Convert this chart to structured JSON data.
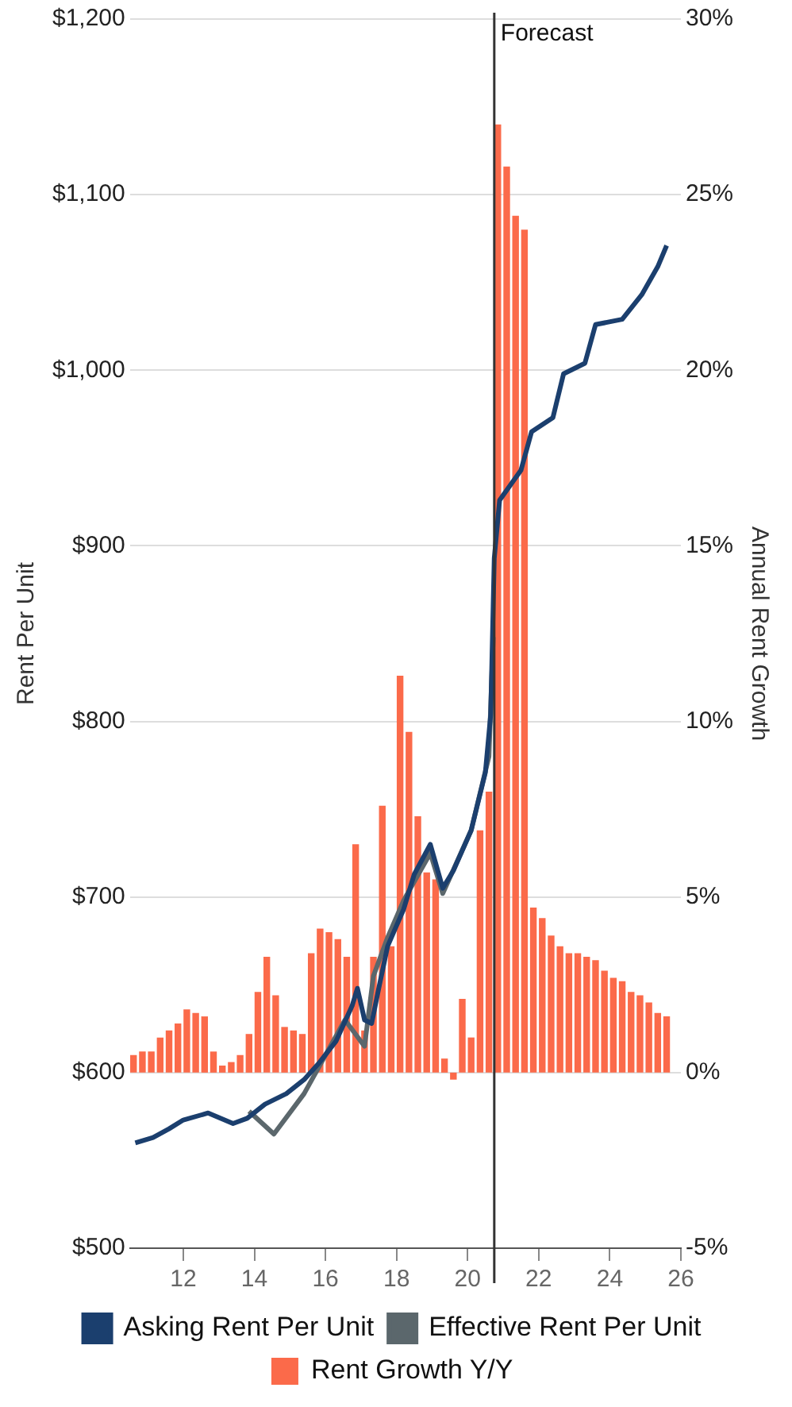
{
  "chart_data": {
    "type": "bar",
    "xlabel": null,
    "ylabel": "Rent Per Unit",
    "y2label": "Annual Rent Growth",
    "xlim": [
      10.5,
      26
    ],
    "xticks": [
      12,
      14,
      16,
      18,
      20,
      22,
      24,
      26
    ],
    "ylim": [
      500,
      1200
    ],
    "yticks": [
      {
        "value": 500,
        "label": "$500"
      },
      {
        "value": 600,
        "label": "$600"
      },
      {
        "value": 700,
        "label": "$700"
      },
      {
        "value": 800,
        "label": "$800"
      },
      {
        "value": 900,
        "label": "$900"
      },
      {
        "value": 1000,
        "label": "$1,000"
      },
      {
        "value": 1100,
        "label": "$1,100"
      },
      {
        "value": 1200,
        "label": "$1,200"
      }
    ],
    "y2lim": [
      -5,
      30
    ],
    "y2ticks": [
      {
        "value": -5,
        "label": "-5%"
      },
      {
        "value": 0,
        "label": "0%"
      },
      {
        "value": 5,
        "label": "5%"
      },
      {
        "value": 10,
        "label": "10%"
      },
      {
        "value": 15,
        "label": "15%"
      },
      {
        "value": 20,
        "label": "20%"
      },
      {
        "value": 25,
        "label": "25%"
      },
      {
        "value": 30,
        "label": "30%"
      }
    ],
    "grid": "y",
    "legend": "bottom",
    "ref_lines": [
      {
        "axis": "x",
        "value": 20.75,
        "label": "Forecast",
        "color": "#333333"
      }
    ],
    "series": [
      {
        "name": "Rent Growth Y/Y",
        "axis": "y2",
        "color": "#fb6a4a",
        "x": [
          10.6,
          10.85,
          11.1,
          11.35,
          11.6,
          11.85,
          12.1,
          12.35,
          12.6,
          12.85,
          13.1,
          13.35,
          13.6,
          13.85,
          14.1,
          14.35,
          14.6,
          14.85,
          15.1,
          15.35,
          15.6,
          15.85,
          16.1,
          16.35,
          16.6,
          16.85,
          17.1,
          17.35,
          17.6,
          17.85,
          18.1,
          18.35,
          18.6,
          18.85,
          19.1,
          19.35,
          19.6,
          19.85,
          20.1,
          20.35,
          20.6,
          20.85,
          21.1,
          21.35,
          21.6,
          21.85,
          22.1,
          22.35,
          22.6,
          22.85,
          23.1,
          23.35,
          23.6,
          23.85,
          24.1,
          24.35,
          24.6,
          24.85,
          25.1,
          25.35,
          25.6
        ],
        "values": [
          0.5,
          0.6,
          0.6,
          1.0,
          1.2,
          1.4,
          1.8,
          1.7,
          1.6,
          0.6,
          0.2,
          0.3,
          0.5,
          1.1,
          2.3,
          3.3,
          2.2,
          1.3,
          1.2,
          1.1,
          3.4,
          4.1,
          4.0,
          3.8,
          3.3,
          6.5,
          1.2,
          3.3,
          7.6,
          3.6,
          11.3,
          9.7,
          7.3,
          5.7,
          5.5,
          0.4,
          -0.2,
          2.1,
          1.0,
          6.9,
          8.0,
          27.0,
          25.8,
          24.4,
          24.0,
          4.7,
          4.4,
          3.9,
          3.6,
          3.4,
          3.4,
          3.3,
          3.2,
          2.9,
          2.7,
          2.6,
          2.3,
          2.2,
          2.0,
          1.7,
          1.6
        ]
      },
      {
        "name": "Asking Rent Per Unit",
        "type": "line",
        "color": "#1b3f6e",
        "x": [
          10.65,
          11.15,
          11.6,
          12.0,
          12.7,
          13.4,
          13.8,
          14.3,
          14.9,
          15.4,
          15.8,
          16.3,
          16.75,
          16.9,
          17.1,
          17.3,
          17.5,
          17.75,
          18.2,
          18.5,
          18.95,
          19.3,
          19.6,
          20.1,
          20.5,
          20.65,
          20.75,
          20.9,
          21.5,
          21.8,
          22.4,
          22.7,
          23.3,
          23.6,
          24.35,
          24.9,
          25.35,
          25.6
        ],
        "values": [
          560,
          563,
          568,
          573,
          577,
          571,
          574,
          582,
          588,
          596,
          605,
          618,
          638,
          648,
          630,
          628,
          648,
          672,
          693,
          713,
          730,
          705,
          715,
          738,
          771,
          804,
          893,
          926,
          943,
          965,
          973,
          998,
          1004,
          1026,
          1029,
          1043,
          1059,
          1071
        ]
      },
      {
        "name": "Effective Rent Per Unit",
        "type": "line",
        "color": "#5b676c",
        "x": [
          13.85,
          14.55,
          15.4,
          16.55,
          17.1,
          17.35,
          17.75,
          18.2,
          18.95,
          19.3,
          20.1,
          20.6,
          20.72
        ],
        "values": [
          578,
          565,
          588,
          630,
          615,
          655,
          677,
          698,
          725,
          702,
          738,
          780,
          848
        ]
      }
    ]
  }
}
